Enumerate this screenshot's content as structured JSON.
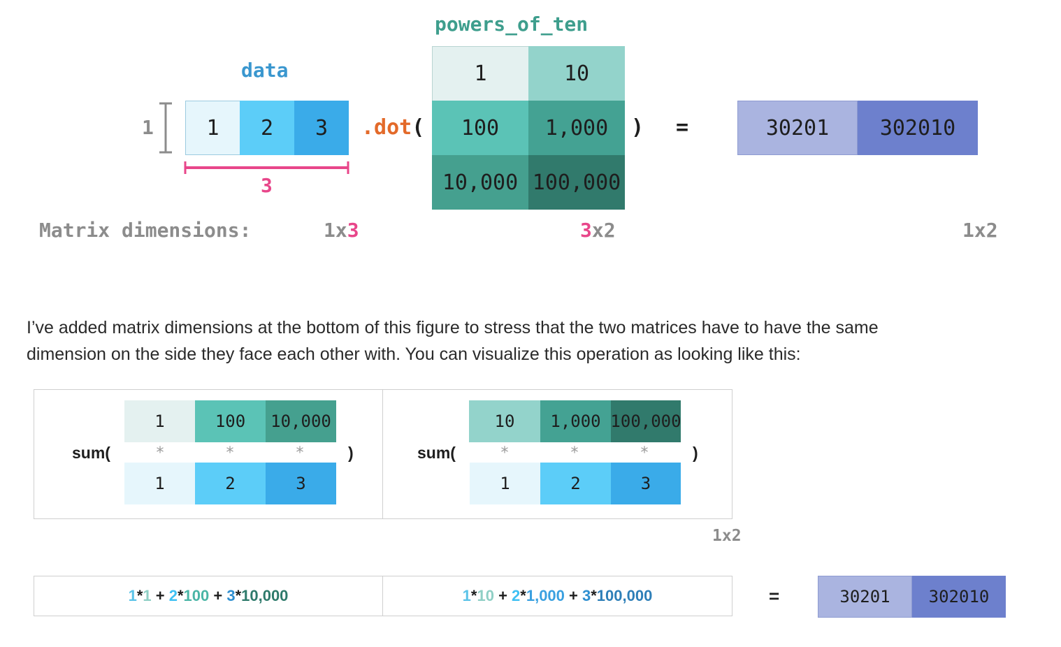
{
  "colors": {
    "data_1": "#e6f6fc",
    "data_2": "#5ccdf8",
    "data_3": "#3aabe9",
    "p_1": "#e4f1f0",
    "p_10": "#93d3cb",
    "p_100": "#5bc3b6",
    "p_1000": "#44a293",
    "p_10000": "#45a08f",
    "p_100000": "#317a6c",
    "r_1": "#aab4e0",
    "r_2": "#6d80cd",
    "accent_pink": "#e8468a",
    "accent_orange": "#e36a2a",
    "title_blue": "#3a97cf",
    "title_teal": "#3e9e8d"
  },
  "top": {
    "data_title": "data",
    "powers_title": "powers_of_ten",
    "data_values": [
      "1",
      "2",
      "3"
    ],
    "powers_values": [
      "1",
      "10",
      "100",
      "1,000",
      "10,000",
      "100,000"
    ],
    "row_dim": "1",
    "col_dim": "3",
    "dot_text": ".dot",
    "open_paren": "(",
    "close_paren": ")",
    "equals": "=",
    "result_values": [
      "30201",
      "302010"
    ],
    "dims_label": "Matrix dimensions:",
    "dim_data_prefix": "1x",
    "dim_data_pink": "3",
    "dim_powers_pink": "3",
    "dim_powers_suffix": "x2",
    "dim_result": "1x2"
  },
  "paragraph": {
    "line1": "I’ve added matrix dimensions at the bottom of this figure to stress that the two matrices have to have the same",
    "line2": "dimension on the side they face each other with. You can visualize this operation as looking like this:"
  },
  "lower": {
    "sum_label": "sum(",
    "close_paren": ")",
    "star": "*",
    "left_top": [
      "1",
      "100",
      "10,000"
    ],
    "left_bottom": [
      "1",
      "2",
      "3"
    ],
    "right_top": [
      "10",
      "1,000",
      "100,000"
    ],
    "right_bottom": [
      "1",
      "2",
      "3"
    ],
    "dim": "1x2",
    "equals": "=",
    "results": [
      "30201",
      "302010"
    ],
    "formula_left": {
      "t1a": "1",
      "t1b": "*",
      "t1c": "1",
      "p1": " + ",
      "t2a": "2",
      "t2b": "*",
      "t2c": "100",
      "p2": " + ",
      "t3a": "3",
      "t3b": "*",
      "t3c": "10,000"
    },
    "formula_right": {
      "t1a": "1",
      "t1b": "*",
      "t1c": "10",
      "p1": " + ",
      "t2a": "2",
      "t2b": "*",
      "t2c": "1,000",
      "p2": " + ",
      "t3a": "3",
      "t3b": "*",
      "t3c": "100,000"
    }
  }
}
